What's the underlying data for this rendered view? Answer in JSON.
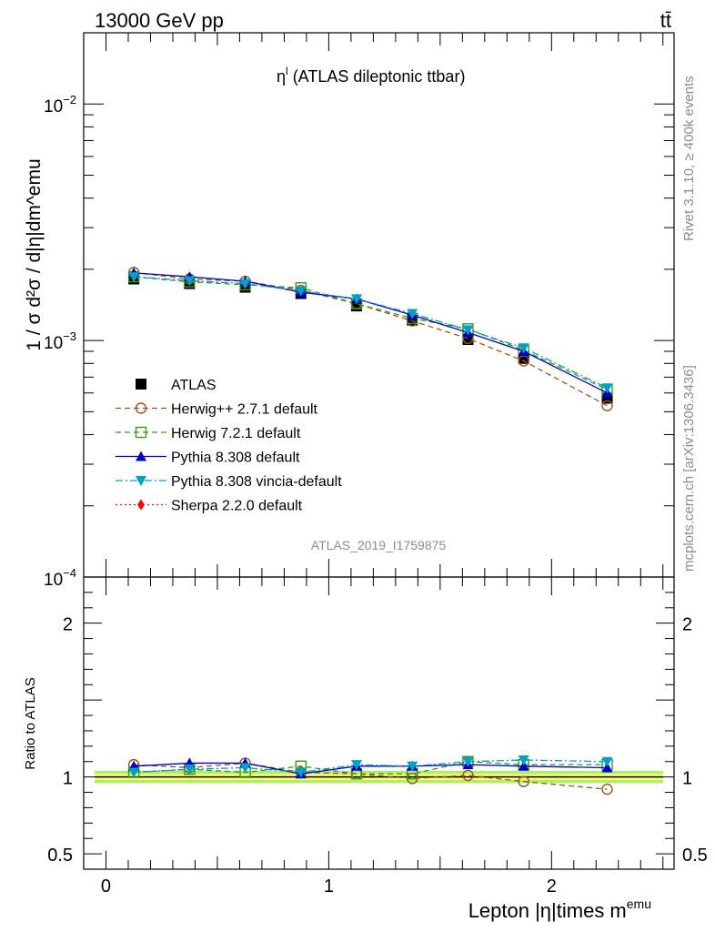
{
  "header": {
    "left": "13000 GeV pp",
    "right": "tt̄"
  },
  "side": {
    "rivet": "Rivet 3.1.10, ≥ 400k events",
    "mcplots": "mcplots.cern.ch [arXiv:1306.3436]"
  },
  "analysis_id": "ATLAS_2019_I1759875",
  "colors": {
    "band_inner": "#ffff66",
    "band_outer": "#aaf06e",
    "ATLAS": "#000000",
    "Herwig++ 2.7.1 default": "#a0521e",
    "Herwig 7.2.1 default": "#3c9614",
    "Pythia 8.308 default": "#0000cc",
    "Pythia 8.308 vincia-default": "#00a0c8",
    "Sherpa 2.2.0 default": "#ff0000"
  },
  "chart_data": [
    {
      "type": "scatter",
      "panel": "main",
      "title_main": "η",
      "title_sup": "l",
      "title_rest": " (ATLAS dileptonic ttbar)",
      "ylabel": "1 / σ d²σ / d|η|dm^emu",
      "yscale": "log",
      "ylim": [
        0.0001,
        0.02
      ],
      "xlim": [
        -0.1,
        2.55
      ],
      "yticks": [
        {
          "value": 0.01,
          "label": "10",
          "exp": "−2"
        },
        {
          "value": 0.001,
          "label": "10",
          "exp": "−3"
        },
        {
          "value": 0.0001,
          "label": "10",
          "exp": "−4"
        }
      ],
      "x": [
        0.125,
        0.375,
        0.625,
        0.875,
        1.125,
        1.375,
        1.625,
        1.875,
        2.25
      ],
      "series": [
        {
          "name": "ATLAS",
          "marker": "square",
          "line": "none",
          "values": [
            0.00182,
            0.00174,
            0.00168,
            0.00158,
            0.0014,
            0.00122,
            0.00101,
            0.00084,
            0.00057
          ]
        },
        {
          "name": "Herwig++ 2.7.1 default",
          "marker": "circle-open",
          "line": "dashed",
          "values": [
            0.00194,
            0.00182,
            0.00178,
            0.00163,
            0.00143,
            0.00121,
            0.00102,
            0.00082,
            0.00053
          ]
        },
        {
          "name": "Herwig 7.2.1 default",
          "marker": "square-open",
          "line": "dashed",
          "values": [
            0.00186,
            0.00177,
            0.00172,
            0.00167,
            0.00143,
            0.00124,
            0.00112,
            0.00091,
            0.00062
          ]
        },
        {
          "name": "Pythia 8.308 default",
          "marker": "triangle-up",
          "line": "solid",
          "values": [
            0.00193,
            0.00186,
            0.00178,
            0.0016,
            0.0015,
            0.00128,
            0.00108,
            0.0009,
            0.0006
          ]
        },
        {
          "name": "Pythia 8.308 vincia-default",
          "marker": "triangle-down",
          "line": "dashdot",
          "values": [
            0.00186,
            0.00179,
            0.00174,
            0.00162,
            0.0015,
            0.0013,
            0.00111,
            0.00093,
            0.00063
          ]
        },
        {
          "name": "Sherpa 2.2.0 default",
          "marker": "diamond",
          "line": "dotted",
          "values": []
        }
      ],
      "legend": {
        "position": "bottom-left"
      }
    },
    {
      "type": "scatter",
      "panel": "ratio",
      "ylabel": "Ratio to ATLAS",
      "xlabel_main": "Lepton |η|times m",
      "xlabel_sup": "emu",
      "ylim": [
        0.4,
        2.3
      ],
      "xlim": [
        -0.1,
        2.55
      ],
      "yticks": [
        {
          "value": 2,
          "label": "2"
        },
        {
          "value": 1,
          "label": "1"
        },
        {
          "value": 0.5,
          "label": "0.5"
        }
      ],
      "xticks": [
        {
          "value": 0,
          "label": "0"
        },
        {
          "value": 1,
          "label": "1"
        },
        {
          "value": 2,
          "label": "2"
        }
      ],
      "band": {
        "inner": 0.02,
        "outer": 0.04
      },
      "x": [
        0.125,
        0.375,
        0.625,
        0.875,
        1.125,
        1.375,
        1.625,
        1.875,
        2.25
      ],
      "series": [
        {
          "name": "Herwig++ 2.7.1 default",
          "marker": "circle-open",
          "line": "dashed",
          "values": [
            1.08,
            1.06,
            1.09,
            1.03,
            1.02,
            0.99,
            1.01,
            0.97,
            0.92
          ]
        },
        {
          "name": "Herwig 7.2.1 default",
          "marker": "square-open",
          "line": "dashed",
          "values": [
            1.03,
            1.05,
            1.03,
            1.07,
            1.02,
            1.02,
            1.1,
            1.08,
            1.08
          ]
        },
        {
          "name": "Pythia 8.308 default",
          "marker": "triangle-up",
          "line": "solid",
          "values": [
            1.07,
            1.09,
            1.09,
            1.02,
            1.07,
            1.07,
            1.08,
            1.07,
            1.06
          ]
        },
        {
          "name": "Pythia 8.308 vincia-default",
          "marker": "triangle-down",
          "line": "dashdot",
          "values": [
            1.03,
            1.05,
            1.06,
            1.03,
            1.08,
            1.07,
            1.1,
            1.11,
            1.1
          ]
        }
      ]
    }
  ]
}
